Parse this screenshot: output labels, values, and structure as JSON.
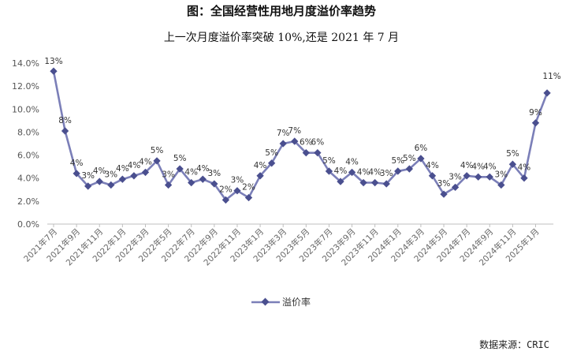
{
  "chart_data": {
    "type": "line",
    "title": "图：全国经营性用地月度溢价率趋势",
    "subtitle": "上一次月度溢价率突破 10%,还是 2021 年 7 月",
    "source": "数据来源：CRIC",
    "xlabel": "",
    "ylabel": "",
    "ylim": [
      0,
      14
    ],
    "y_ticks": [
      "0.0%",
      "2.0%",
      "4.0%",
      "6.0%",
      "8.0%",
      "10.0%",
      "12.0%",
      "14.0%"
    ],
    "x_tick_labels": [
      "2021年7月",
      "2021年9月",
      "2021年11月",
      "2022年1月",
      "2022年3月",
      "2022年5月",
      "2022年7月",
      "2022年9月",
      "2022年11月",
      "2023年1月",
      "2023年3月",
      "2023年5月",
      "2023年7月",
      "2023年9月",
      "2023年11月",
      "2024年1月",
      "2024年3月",
      "2024年5月",
      "2024年7月",
      "2024年9月",
      "2024年11月",
      "2025年1月"
    ],
    "legend_position": "bottom",
    "grid": false,
    "categories": [
      "2021年7月",
      "2021年8月",
      "2021年9月",
      "2021年10月",
      "2021年11月",
      "2021年12月",
      "2022年1月",
      "2022年2月",
      "2022年3月",
      "2022年4月",
      "2022年5月",
      "2022年6月",
      "2022年7月",
      "2022年8月",
      "2022年9月",
      "2022年10月",
      "2022年11月",
      "2022年12月",
      "2023年1月",
      "2023年2月",
      "2023年3月",
      "2023年4月",
      "2023年5月",
      "2023年6月",
      "2023年7月",
      "2023年8月",
      "2023年9月",
      "2023年10月",
      "2023年11月",
      "2023年12月",
      "2024年1月",
      "2024年2月",
      "2024年3月",
      "2024年4月",
      "2024年5月",
      "2024年6月",
      "2024年7月",
      "2024年8月",
      "2024年9月",
      "2024年10月",
      "2024年11月",
      "2024年12月",
      "2025年1月",
      "2025年2月"
    ],
    "series": [
      {
        "name": "溢价率",
        "color": "#7b7fb8",
        "values": [
          13.3,
          8.1,
          4.4,
          3.3,
          3.7,
          3.4,
          3.9,
          4.2,
          4.5,
          5.5,
          3.4,
          4.8,
          3.6,
          3.9,
          3.5,
          2.1,
          2.9,
          2.3,
          4.2,
          5.3,
          7.0,
          7.2,
          6.2,
          6.2,
          4.6,
          3.7,
          4.5,
          3.6,
          3.6,
          3.5,
          4.6,
          4.8,
          5.7,
          4.2,
          2.6,
          3.2,
          4.2,
          4.1,
          4.1,
          3.4,
          5.2,
          4.0,
          8.8,
          11.4
        ],
        "data_labels": [
          "13%",
          "8%",
          "4%",
          "3%",
          "4%",
          "3%",
          "4%",
          "4%",
          "4%",
          "5%",
          "3%",
          "5%",
          "4%",
          "4%",
          "3%",
          "2%",
          "3%",
          "2%",
          "4%",
          "5%",
          "7%",
          "7%",
          "6%",
          "6%",
          "5%",
          "4%",
          "4%",
          "4%",
          "4%",
          "3%",
          "5%",
          "5%",
          "6%",
          "4%",
          "3%",
          "3%",
          "4%",
          "4%",
          "4%",
          "3%",
          "5%",
          "4%",
          "9%",
          "11%"
        ]
      }
    ]
  },
  "legend": {
    "label": "溢价率"
  }
}
